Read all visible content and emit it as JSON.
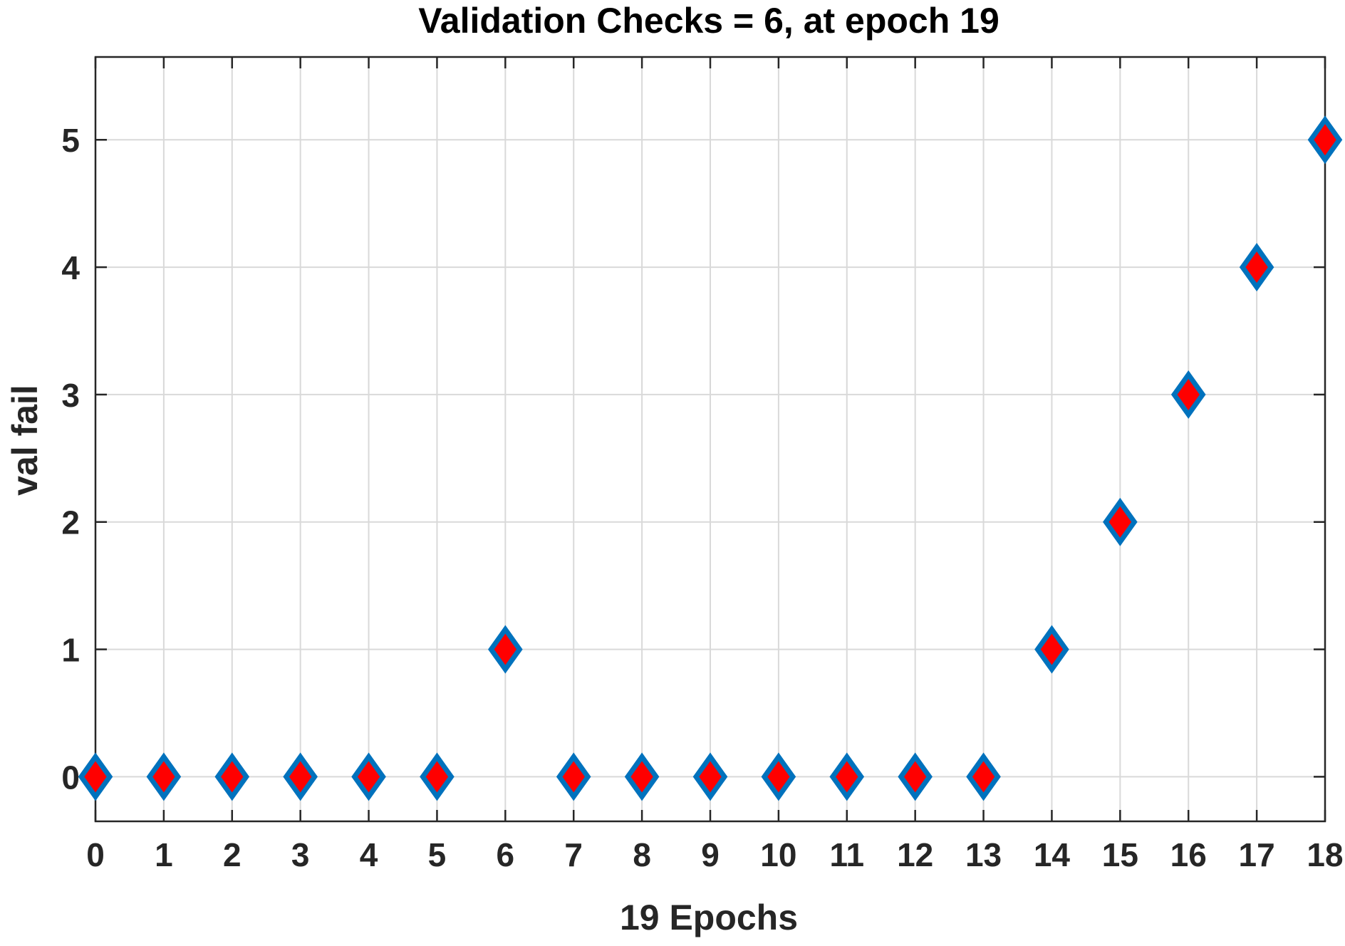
{
  "chart_data": {
    "type": "scatter",
    "title": "Validation Checks = 6, at epoch 19",
    "xlabel": "19 Epochs",
    "ylabel": "val fail",
    "x": [
      0,
      1,
      2,
      3,
      4,
      5,
      6,
      7,
      8,
      9,
      10,
      11,
      12,
      13,
      14,
      15,
      16,
      17,
      18
    ],
    "y": [
      0,
      0,
      0,
      0,
      0,
      0,
      1,
      0,
      0,
      0,
      0,
      0,
      0,
      0,
      1,
      2,
      3,
      4,
      5
    ],
    "xlim": [
      0,
      18
    ],
    "ylim": [
      -0.35,
      5.65
    ],
    "xticks": [
      "0",
      "1",
      "2",
      "3",
      "4",
      "5",
      "6",
      "7",
      "8",
      "9",
      "10",
      "11",
      "12",
      "13",
      "14",
      "15",
      "16",
      "17",
      "18"
    ],
    "yticks": [
      "0",
      "1",
      "2",
      "3",
      "4",
      "5"
    ],
    "grid": true,
    "marker": "diamond",
    "marker_fill": "#ff0000",
    "marker_edge": "#0072bd",
    "colors": {
      "axes": "#262626",
      "grid": "#d9d9d9",
      "text": "#262626"
    }
  }
}
